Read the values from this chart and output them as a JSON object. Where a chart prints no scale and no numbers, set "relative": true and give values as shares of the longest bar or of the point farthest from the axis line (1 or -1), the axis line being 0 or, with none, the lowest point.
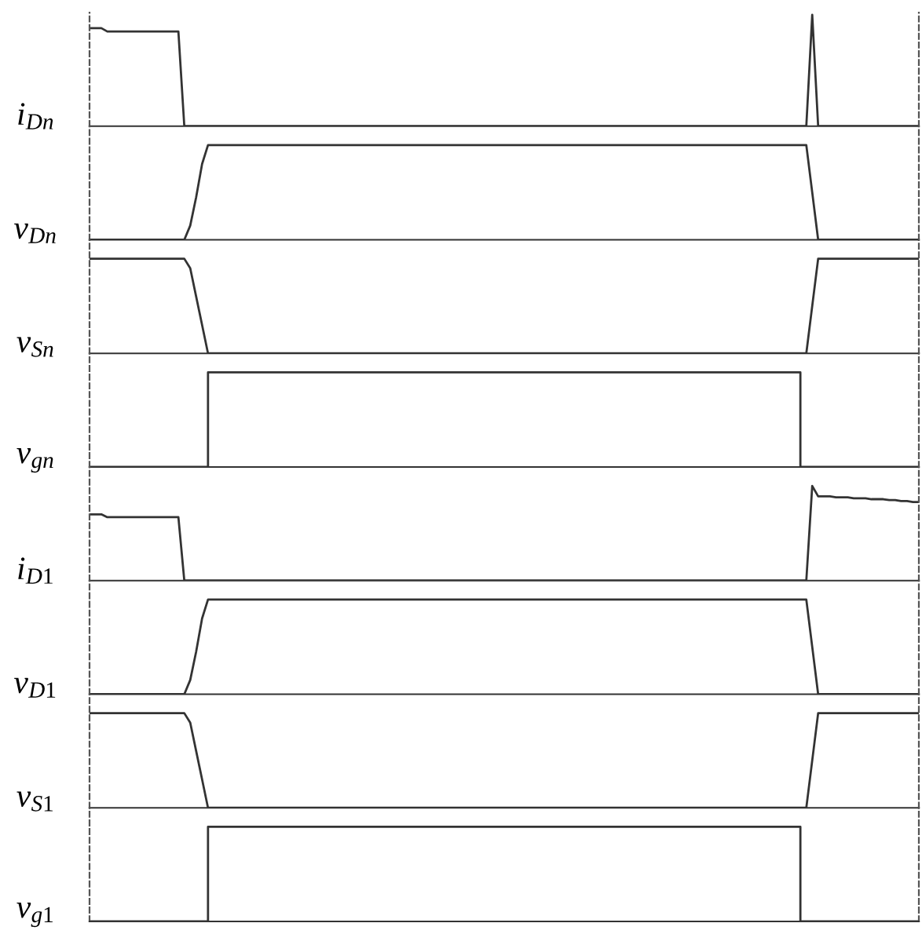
{
  "chart_data": [
    {
      "type": "line",
      "ylabel": "i$_{Dn}$",
      "relative": true,
      "categories": [
        null,
        null,
        null,
        null,
        null,
        null,
        null,
        null,
        null,
        null,
        null,
        null,
        null,
        null,
        null,
        null,
        null,
        null,
        null,
        null,
        null,
        null,
        null,
        null,
        null,
        null,
        null,
        null,
        null,
        null,
        null,
        null,
        null,
        null,
        null,
        null,
        null,
        null,
        null,
        null,
        null,
        null,
        null,
        null,
        null,
        null,
        null,
        null,
        null,
        null,
        null,
        null,
        null,
        null,
        null,
        null,
        null,
        null,
        null,
        null,
        null,
        null,
        null,
        null,
        null,
        null,
        null,
        null,
        null,
        null,
        null,
        null,
        null,
        null,
        null,
        null,
        null,
        null,
        null,
        null,
        null,
        null,
        null,
        null,
        null,
        null,
        null,
        null,
        null,
        null,
        null,
        null,
        null,
        null,
        null,
        null,
        null,
        null,
        null,
        null,
        null,
        null,
        null,
        null,
        null,
        null,
        null,
        null,
        null,
        null,
        null,
        null,
        null,
        null,
        null,
        null,
        null,
        null,
        null,
        null,
        null,
        null,
        null,
        null,
        null,
        null,
        null,
        null,
        null,
        null,
        null,
        null,
        null,
        null,
        null,
        null,
        null,
        null,
        null,
        null,
        null
      ],
      "series": [
        {
          "color": "#333333",
          "values": [
            0.88,
            0.88,
            0.88,
            0.85,
            0.85,
            0.85,
            0.85,
            0.85,
            0.85,
            0.85,
            0.85,
            0.85,
            0.85,
            0.85,
            0.85,
            0.85,
            0,
            0,
            0,
            0,
            0,
            0,
            0,
            0,
            0,
            0,
            0,
            0,
            0,
            0,
            0,
            0,
            0,
            0,
            0,
            0,
            0,
            0,
            0,
            0,
            0,
            0,
            0,
            0,
            0,
            0,
            0,
            0,
            0,
            0,
            0,
            0,
            0,
            0,
            0,
            0,
            0,
            0,
            0,
            0,
            0,
            0,
            0,
            0,
            0,
            0,
            0,
            0,
            0,
            0,
            0,
            0,
            0,
            0,
            0,
            0,
            0,
            0,
            0,
            0,
            0,
            0,
            0,
            0,
            0,
            0,
            0,
            0,
            0,
            0,
            0,
            0,
            0,
            0,
            0,
            0,
            0,
            0,
            0,
            0,
            0,
            0,
            0,
            0,
            0,
            0,
            0,
            0,
            0,
            0,
            0,
            0,
            0,
            0,
            0,
            0,
            0,
            0,
            0,
            0,
            0,
            0,
            1,
            0,
            0,
            0,
            0,
            0,
            0,
            0,
            0,
            0,
            0,
            0,
            0,
            0,
            0,
            0,
            0,
            0,
            0
          ]
        }
      ]
    },
    {
      "type": "line",
      "ylabel": "v$_{Dn}$",
      "relative": true,
      "categories": [
        null,
        null,
        null,
        null,
        null,
        null,
        null,
        null,
        null,
        null,
        null,
        null,
        null,
        null,
        null,
        null,
        null,
        null,
        null,
        null,
        null,
        null,
        null,
        null,
        null,
        null,
        null,
        null,
        null,
        null,
        null,
        null,
        null,
        null,
        null,
        null,
        null,
        null,
        null,
        null,
        null,
        null,
        null,
        null,
        null,
        null,
        null,
        null,
        null,
        null,
        null,
        null,
        null,
        null,
        null,
        null,
        null,
        null,
        null,
        null,
        null,
        null,
        null,
        null,
        null,
        null,
        null,
        null,
        null,
        null,
        null,
        null,
        null,
        null,
        null,
        null,
        null,
        null,
        null,
        null,
        null,
        null,
        null,
        null,
        null,
        null,
        null,
        null,
        null,
        null,
        null,
        null,
        null,
        null,
        null,
        null,
        null,
        null,
        null,
        null,
        null,
        null,
        null,
        null,
        null,
        null,
        null,
        null,
        null,
        null,
        null,
        null,
        null,
        null,
        null,
        null,
        null,
        null,
        null,
        null,
        null,
        null,
        null,
        null,
        null,
        null,
        null,
        null,
        null,
        null,
        null,
        null,
        null,
        null,
        null,
        null,
        null,
        null,
        null,
        null,
        null
      ],
      "series": [
        {
          "color": "#333333",
          "values": [
            0,
            0,
            0,
            0,
            0,
            0,
            0,
            0,
            0,
            0,
            0,
            0,
            0,
            0,
            0,
            0,
            0,
            0.15,
            0.45,
            0.8,
            1,
            1,
            1,
            1,
            1,
            1,
            1,
            1,
            1,
            1,
            1,
            1,
            1,
            1,
            1,
            1,
            1,
            1,
            1,
            1,
            1,
            1,
            1,
            1,
            1,
            1,
            1,
            1,
            1,
            1,
            1,
            1,
            1,
            1,
            1,
            1,
            1,
            1,
            1,
            1,
            1,
            1,
            1,
            1,
            1,
            1,
            1,
            1,
            1,
            1,
            1,
            1,
            1,
            1,
            1,
            1,
            1,
            1,
            1,
            1,
            1,
            1,
            1,
            1,
            1,
            1,
            1,
            1,
            1,
            1,
            1,
            1,
            1,
            1,
            1,
            1,
            1,
            1,
            1,
            1,
            1,
            1,
            1,
            1,
            1,
            1,
            1,
            1,
            1,
            1,
            1,
            1,
            1,
            1,
            1,
            1,
            1,
            1,
            1,
            1,
            1,
            1,
            0.5,
            0,
            0,
            0,
            0,
            0,
            0,
            0,
            0,
            0,
            0,
            0,
            0,
            0,
            0,
            0,
            0,
            0,
            0
          ]
        }
      ]
    },
    {
      "type": "line",
      "ylabel": "v$_{Sn}$",
      "relative": true,
      "categories": [
        null,
        null,
        null,
        null,
        null,
        null,
        null,
        null,
        null,
        null,
        null,
        null,
        null,
        null,
        null,
        null,
        null,
        null,
        null,
        null,
        null,
        null,
        null,
        null,
        null,
        null,
        null,
        null,
        null,
        null,
        null,
        null,
        null,
        null,
        null,
        null,
        null,
        null,
        null,
        null,
        null,
        null,
        null,
        null,
        null,
        null,
        null,
        null,
        null,
        null,
        null,
        null,
        null,
        null,
        null,
        null,
        null,
        null,
        null,
        null,
        null,
        null,
        null,
        null,
        null,
        null,
        null,
        null,
        null,
        null,
        null,
        null,
        null,
        null,
        null,
        null,
        null,
        null,
        null,
        null,
        null,
        null,
        null,
        null,
        null,
        null,
        null,
        null,
        null,
        null,
        null,
        null,
        null,
        null,
        null,
        null,
        null,
        null,
        null,
        null,
        null,
        null,
        null,
        null,
        null,
        null,
        null,
        null,
        null,
        null,
        null,
        null,
        null,
        null,
        null,
        null,
        null,
        null,
        null,
        null,
        null,
        null,
        null,
        null,
        null,
        null,
        null,
        null,
        null,
        null,
        null,
        null,
        null,
        null,
        null,
        null,
        null,
        null,
        null,
        null,
        null
      ],
      "series": [
        {
          "color": "#333333",
          "values": [
            1,
            1,
            1,
            1,
            1,
            1,
            1,
            1,
            1,
            1,
            1,
            1,
            1,
            1,
            1,
            1,
            1,
            0.9,
            0.6,
            0.3,
            0,
            0,
            0,
            0,
            0,
            0,
            0,
            0,
            0,
            0,
            0,
            0,
            0,
            0,
            0,
            0,
            0,
            0,
            0,
            0,
            0,
            0,
            0,
            0,
            0,
            0,
            0,
            0,
            0,
            0,
            0,
            0,
            0,
            0,
            0,
            0,
            0,
            0,
            0,
            0,
            0,
            0,
            0,
            0,
            0,
            0,
            0,
            0,
            0,
            0,
            0,
            0,
            0,
            0,
            0,
            0,
            0,
            0,
            0,
            0,
            0,
            0,
            0,
            0,
            0,
            0,
            0,
            0,
            0,
            0,
            0,
            0,
            0,
            0,
            0,
            0,
            0,
            0,
            0,
            0,
            0,
            0,
            0,
            0,
            0,
            0,
            0,
            0,
            0,
            0,
            0,
            0,
            0,
            0,
            0,
            0,
            0,
            0,
            0,
            0,
            0,
            0,
            0.5,
            1,
            1,
            1,
            1,
            1,
            1,
            1,
            1,
            1,
            1,
            1,
            1,
            1,
            1,
            1,
            1,
            1,
            1
          ]
        }
      ]
    },
    {
      "type": "step",
      "ylabel": "v$_{gn}$",
      "relative": true,
      "categories": [
        null,
        null,
        null,
        null,
        null,
        null,
        null,
        null,
        null,
        null,
        null,
        null,
        null,
        null,
        null,
        null,
        null,
        null,
        null,
        null,
        null,
        null,
        null,
        null,
        null,
        null,
        null,
        null,
        null,
        null,
        null,
        null,
        null,
        null,
        null,
        null,
        null,
        null,
        null,
        null,
        null,
        null,
        null,
        null,
        null,
        null,
        null,
        null,
        null,
        null,
        null,
        null,
        null,
        null,
        null,
        null,
        null,
        null,
        null,
        null,
        null,
        null,
        null,
        null,
        null,
        null,
        null,
        null,
        null,
        null,
        null,
        null,
        null,
        null,
        null,
        null,
        null,
        null,
        null,
        null,
        null,
        null,
        null,
        null,
        null,
        null,
        null,
        null,
        null,
        null,
        null,
        null,
        null,
        null,
        null,
        null,
        null,
        null,
        null,
        null,
        null,
        null,
        null,
        null,
        null,
        null,
        null,
        null,
        null,
        null,
        null,
        null,
        null,
        null,
        null,
        null,
        null,
        null,
        null,
        null,
        null,
        null,
        null,
        null,
        null,
        null,
        null,
        null,
        null,
        null,
        null,
        null,
        null,
        null,
        null,
        null,
        null,
        null,
        null,
        null,
        null
      ],
      "series": [
        {
          "color": "#333333",
          "values": [
            0,
            0,
            0,
            0,
            0,
            0,
            0,
            0,
            0,
            0,
            0,
            0,
            0,
            0,
            0,
            0,
            0,
            0,
            0,
            0,
            1,
            1,
            1,
            1,
            1,
            1,
            1,
            1,
            1,
            1,
            1,
            1,
            1,
            1,
            1,
            1,
            1,
            1,
            1,
            1,
            1,
            1,
            1,
            1,
            1,
            1,
            1,
            1,
            1,
            1,
            1,
            1,
            1,
            1,
            1,
            1,
            1,
            1,
            1,
            1,
            1,
            1,
            1,
            1,
            1,
            1,
            1,
            1,
            1,
            1,
            1,
            1,
            1,
            1,
            1,
            1,
            1,
            1,
            1,
            1,
            1,
            1,
            1,
            1,
            1,
            1,
            1,
            1,
            1,
            1,
            1,
            1,
            1,
            1,
            1,
            1,
            1,
            1,
            1,
            1,
            1,
            1,
            1,
            1,
            1,
            1,
            1,
            1,
            1,
            1,
            1,
            1,
            1,
            1,
            1,
            1,
            1,
            1,
            1,
            1,
            0,
            0,
            0,
            0,
            0,
            0,
            0,
            0,
            0,
            0,
            0,
            0,
            0,
            0,
            0,
            0,
            0,
            0,
            0,
            0,
            0
          ]
        }
      ]
    },
    {
      "type": "line",
      "ylabel": "i$_{D1}$",
      "relative": true,
      "categories": [
        null,
        null,
        null,
        null,
        null,
        null,
        null,
        null,
        null,
        null,
        null,
        null,
        null,
        null,
        null,
        null,
        null,
        null,
        null,
        null,
        null,
        null,
        null,
        null,
        null,
        null,
        null,
        null,
        null,
        null,
        null,
        null,
        null,
        null,
        null,
        null,
        null,
        null,
        null,
        null,
        null,
        null,
        null,
        null,
        null,
        null,
        null,
        null,
        null,
        null,
        null,
        null,
        null,
        null,
        null,
        null,
        null,
        null,
        null,
        null,
        null,
        null,
        null,
        null,
        null,
        null,
        null,
        null,
        null,
        null,
        null,
        null,
        null,
        null,
        null,
        null,
        null,
        null,
        null,
        null,
        null,
        null,
        null,
        null,
        null,
        null,
        null,
        null,
        null,
        null,
        null,
        null,
        null,
        null,
        null,
        null,
        null,
        null,
        null,
        null,
        null,
        null,
        null,
        null,
        null,
        null,
        null,
        null,
        null,
        null,
        null,
        null,
        null,
        null,
        null,
        null,
        null,
        null,
        null,
        null,
        null,
        null,
        null,
        null,
        null,
        null,
        null,
        null,
        null,
        null,
        null,
        null,
        null,
        null,
        null,
        null,
        null,
        null,
        null,
        null,
        null
      ],
      "series": [
        {
          "color": "#333333",
          "values": [
            0.7,
            0.7,
            0.7,
            0.67,
            0.67,
            0.67,
            0.67,
            0.67,
            0.67,
            0.67,
            0.67,
            0.67,
            0.67,
            0.67,
            0.67,
            0.67,
            0,
            0,
            0,
            0,
            0,
            0,
            0,
            0,
            0,
            0,
            0,
            0,
            0,
            0,
            0,
            0,
            0,
            0,
            0,
            0,
            0,
            0,
            0,
            0,
            0,
            0,
            0,
            0,
            0,
            0,
            0,
            0,
            0,
            0,
            0,
            0,
            0,
            0,
            0,
            0,
            0,
            0,
            0,
            0,
            0,
            0,
            0,
            0,
            0,
            0,
            0,
            0,
            0,
            0,
            0,
            0,
            0,
            0,
            0,
            0,
            0,
            0,
            0,
            0,
            0,
            0,
            0,
            0,
            0,
            0,
            0,
            0,
            0,
            0,
            0,
            0,
            0,
            0,
            0,
            0,
            0,
            0,
            0,
            0,
            0,
            0,
            0,
            0,
            0,
            0,
            0,
            0,
            0,
            0,
            0,
            0,
            0,
            0,
            0,
            0,
            0,
            0,
            0,
            0,
            0,
            0,
            1,
            0.89,
            0.89,
            0.89,
            0.88,
            0.88,
            0.88,
            0.87,
            0.87,
            0.87,
            0.86,
            0.86,
            0.86,
            0.85,
            0.85,
            0.84,
            0.84,
            0.83,
            0.83
          ]
        }
      ]
    },
    {
      "type": "line",
      "ylabel": "v$_{D1}$",
      "relative": true,
      "categories": [
        null,
        null,
        null,
        null,
        null,
        null,
        null,
        null,
        null,
        null,
        null,
        null,
        null,
        null,
        null,
        null,
        null,
        null,
        null,
        null,
        null,
        null,
        null,
        null,
        null,
        null,
        null,
        null,
        null,
        null,
        null,
        null,
        null,
        null,
        null,
        null,
        null,
        null,
        null,
        null,
        null,
        null,
        null,
        null,
        null,
        null,
        null,
        null,
        null,
        null,
        null,
        null,
        null,
        null,
        null,
        null,
        null,
        null,
        null,
        null,
        null,
        null,
        null,
        null,
        null,
        null,
        null,
        null,
        null,
        null,
        null,
        null,
        null,
        null,
        null,
        null,
        null,
        null,
        null,
        null,
        null,
        null,
        null,
        null,
        null,
        null,
        null,
        null,
        null,
        null,
        null,
        null,
        null,
        null,
        null,
        null,
        null,
        null,
        null,
        null,
        null,
        null,
        null,
        null,
        null,
        null,
        null,
        null,
        null,
        null,
        null,
        null,
        null,
        null,
        null,
        null,
        null,
        null,
        null,
        null,
        null,
        null,
        null,
        null,
        null,
        null,
        null,
        null,
        null,
        null,
        null,
        null,
        null,
        null,
        null,
        null,
        null,
        null,
        null,
        null,
        null
      ],
      "series": [
        {
          "color": "#333333",
          "values": [
            0,
            0,
            0,
            0,
            0,
            0,
            0,
            0,
            0,
            0,
            0,
            0,
            0,
            0,
            0,
            0,
            0,
            0.15,
            0.45,
            0.8,
            1,
            1,
            1,
            1,
            1,
            1,
            1,
            1,
            1,
            1,
            1,
            1,
            1,
            1,
            1,
            1,
            1,
            1,
            1,
            1,
            1,
            1,
            1,
            1,
            1,
            1,
            1,
            1,
            1,
            1,
            1,
            1,
            1,
            1,
            1,
            1,
            1,
            1,
            1,
            1,
            1,
            1,
            1,
            1,
            1,
            1,
            1,
            1,
            1,
            1,
            1,
            1,
            1,
            1,
            1,
            1,
            1,
            1,
            1,
            1,
            1,
            1,
            1,
            1,
            1,
            1,
            1,
            1,
            1,
            1,
            1,
            1,
            1,
            1,
            1,
            1,
            1,
            1,
            1,
            1,
            1,
            1,
            1,
            1,
            1,
            1,
            1,
            1,
            1,
            1,
            1,
            1,
            1,
            1,
            1,
            1,
            1,
            1,
            1,
            1,
            1,
            1,
            0.5,
            0,
            0,
            0,
            0,
            0,
            0,
            0,
            0,
            0,
            0,
            0,
            0,
            0,
            0,
            0,
            0,
            0,
            0
          ]
        }
      ]
    },
    {
      "type": "line",
      "ylabel": "v$_{S1}$",
      "relative": true,
      "categories": [
        null,
        null,
        null,
        null,
        null,
        null,
        null,
        null,
        null,
        null,
        null,
        null,
        null,
        null,
        null,
        null,
        null,
        null,
        null,
        null,
        null,
        null,
        null,
        null,
        null,
        null,
        null,
        null,
        null,
        null,
        null,
        null,
        null,
        null,
        null,
        null,
        null,
        null,
        null,
        null,
        null,
        null,
        null,
        null,
        null,
        null,
        null,
        null,
        null,
        null,
        null,
        null,
        null,
        null,
        null,
        null,
        null,
        null,
        null,
        null,
        null,
        null,
        null,
        null,
        null,
        null,
        null,
        null,
        null,
        null,
        null,
        null,
        null,
        null,
        null,
        null,
        null,
        null,
        null,
        null,
        null,
        null,
        null,
        null,
        null,
        null,
        null,
        null,
        null,
        null,
        null,
        null,
        null,
        null,
        null,
        null,
        null,
        null,
        null,
        null,
        null,
        null,
        null,
        null,
        null,
        null,
        null,
        null,
        null,
        null,
        null,
        null,
        null,
        null,
        null,
        null,
        null,
        null,
        null,
        null,
        null,
        null,
        null,
        null,
        null,
        null,
        null,
        null,
        null,
        null,
        null,
        null,
        null,
        null,
        null,
        null,
        null,
        null,
        null,
        null,
        null
      ],
      "series": [
        {
          "color": "#333333",
          "values": [
            1,
            1,
            1,
            1,
            1,
            1,
            1,
            1,
            1,
            1,
            1,
            1,
            1,
            1,
            1,
            1,
            1,
            0.9,
            0.6,
            0.3,
            0,
            0,
            0,
            0,
            0,
            0,
            0,
            0,
            0,
            0,
            0,
            0,
            0,
            0,
            0,
            0,
            0,
            0,
            0,
            0,
            0,
            0,
            0,
            0,
            0,
            0,
            0,
            0,
            0,
            0,
            0,
            0,
            0,
            0,
            0,
            0,
            0,
            0,
            0,
            0,
            0,
            0,
            0,
            0,
            0,
            0,
            0,
            0,
            0,
            0,
            0,
            0,
            0,
            0,
            0,
            0,
            0,
            0,
            0,
            0,
            0,
            0,
            0,
            0,
            0,
            0,
            0,
            0,
            0,
            0,
            0,
            0,
            0,
            0,
            0,
            0,
            0,
            0,
            0,
            0,
            0,
            0,
            0,
            0,
            0,
            0,
            0,
            0,
            0,
            0,
            0,
            0,
            0,
            0,
            0,
            0,
            0,
            0,
            0,
            0,
            0,
            0,
            0.5,
            1,
            1,
            1,
            1,
            1,
            1,
            1,
            1,
            1,
            1,
            1,
            1,
            1,
            1,
            1,
            1,
            1,
            1
          ]
        }
      ]
    },
    {
      "type": "step",
      "ylabel": "v$_{g1}$",
      "relative": true,
      "categories": [
        null,
        null,
        null,
        null,
        null,
        null,
        null,
        null,
        null,
        null,
        null,
        null,
        null,
        null,
        null,
        null,
        null,
        null,
        null,
        null,
        null,
        null,
        null,
        null,
        null,
        null,
        null,
        null,
        null,
        null,
        null,
        null,
        null,
        null,
        null,
        null,
        null,
        null,
        null,
        null,
        null,
        null,
        null,
        null,
        null,
        null,
        null,
        null,
        null,
        null,
        null,
        null,
        null,
        null,
        null,
        null,
        null,
        null,
        null,
        null,
        null,
        null,
        null,
        null,
        null,
        null,
        null,
        null,
        null,
        null,
        null,
        null,
        null,
        null,
        null,
        null,
        null,
        null,
        null,
        null,
        null,
        null,
        null,
        null,
        null,
        null,
        null,
        null,
        null,
        null,
        null,
        null,
        null,
        null,
        null,
        null,
        null,
        null,
        null,
        null,
        null,
        null,
        null,
        null,
        null,
        null,
        null,
        null,
        null,
        null,
        null,
        null,
        null,
        null,
        null,
        null,
        null,
        null,
        null,
        null,
        null,
        null,
        null,
        null,
        null,
        null,
        null,
        null,
        null,
        null,
        null,
        null,
        null,
        null,
        null,
        null,
        null,
        null,
        null,
        null,
        null
      ],
      "series": [
        {
          "color": "#333333",
          "values": [
            0,
            0,
            0,
            0,
            0,
            0,
            0,
            0,
            0,
            0,
            0,
            0,
            0,
            0,
            0,
            0,
            0,
            0,
            0,
            0,
            1,
            1,
            1,
            1,
            1,
            1,
            1,
            1,
            1,
            1,
            1,
            1,
            1,
            1,
            1,
            1,
            1,
            1,
            1,
            1,
            1,
            1,
            1,
            1,
            1,
            1,
            1,
            1,
            1,
            1,
            1,
            1,
            1,
            1,
            1,
            1,
            1,
            1,
            1,
            1,
            1,
            1,
            1,
            1,
            1,
            1,
            1,
            1,
            1,
            1,
            1,
            1,
            1,
            1,
            1,
            1,
            1,
            1,
            1,
            1,
            1,
            1,
            1,
            1,
            1,
            1,
            1,
            1,
            1,
            1,
            1,
            1,
            1,
            1,
            1,
            1,
            1,
            1,
            1,
            1,
            1,
            1,
            1,
            1,
            1,
            1,
            1,
            1,
            1,
            1,
            1,
            1,
            1,
            1,
            1,
            1,
            1,
            1,
            1,
            1,
            0,
            0,
            0,
            0,
            0,
            0,
            0,
            0,
            0,
            0,
            0,
            0,
            0,
            0,
            0,
            0,
            0,
            0,
            0,
            0,
            0
          ]
        }
      ]
    }
  ]
}
